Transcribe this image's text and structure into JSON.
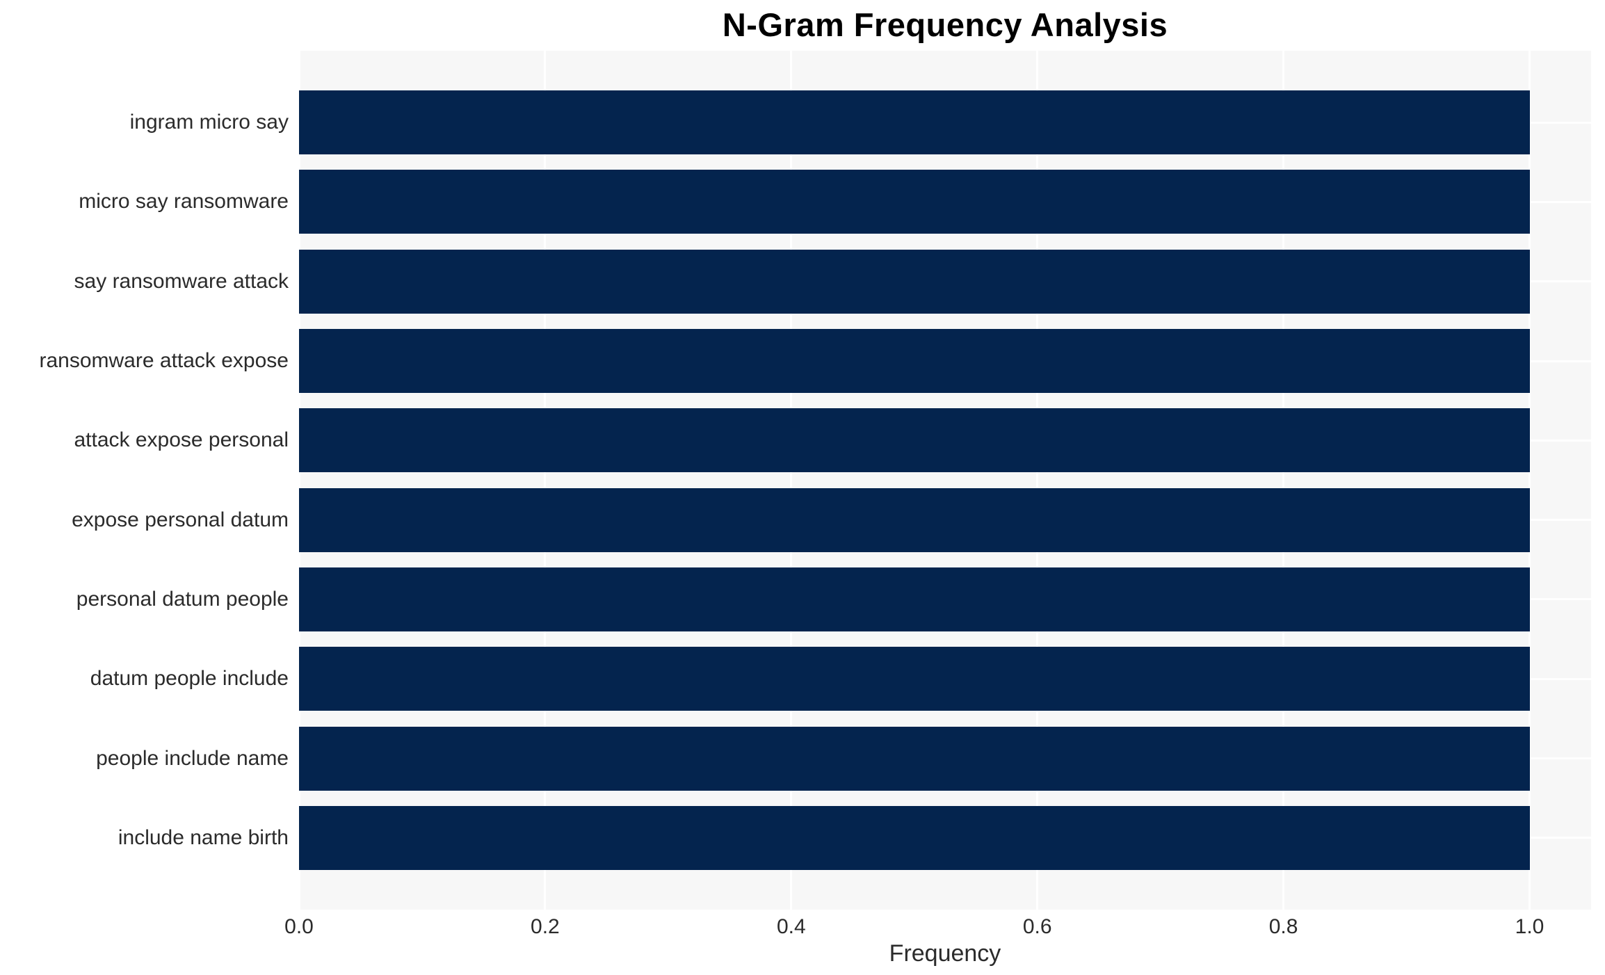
{
  "chart_data": {
    "type": "bar",
    "orientation": "horizontal",
    "title": "N-Gram Frequency Analysis",
    "xlabel": "Frequency",
    "ylabel": "",
    "categories": [
      "ingram micro say",
      "micro say ransomware",
      "say ransomware attack",
      "ransomware attack expose",
      "attack expose personal",
      "expose personal datum",
      "personal datum people",
      "datum people include",
      "people include name",
      "include name birth"
    ],
    "values": [
      1.0,
      1.0,
      1.0,
      1.0,
      1.0,
      1.0,
      1.0,
      1.0,
      1.0,
      1.0
    ],
    "xlim": [
      0,
      1.05
    ],
    "x_ticks": [
      "0.0",
      "0.2",
      "0.4",
      "0.6",
      "0.8",
      "1.0"
    ],
    "x_tick_values": [
      0.0,
      0.2,
      0.4,
      0.6,
      0.8,
      1.0
    ],
    "grid": true,
    "legend": false,
    "colors": {
      "bar": "#04244e",
      "plot_bg": "#f7f7f7",
      "gridline": "#ffffff",
      "text": "#2b2b2b",
      "title": "#000000"
    }
  }
}
